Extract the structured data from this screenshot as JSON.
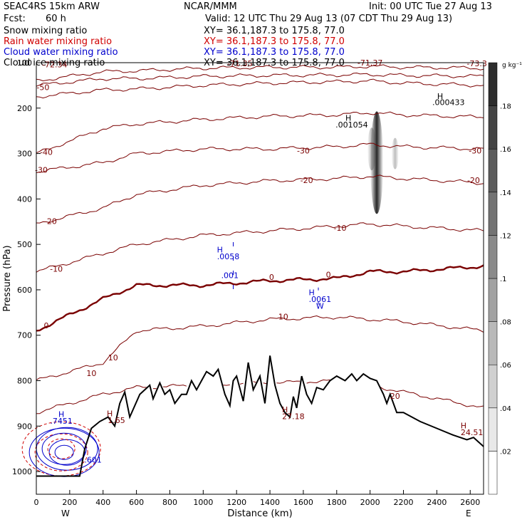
{
  "header": {
    "model": "SEAC4RS 15km ARW",
    "org": "NCAR/MMM",
    "init": "Init: 00 UTC Tue 27 Aug 13",
    "fcst_label": "Fcst:",
    "fcst_value": "60 h",
    "valid": "Valid: 12 UTC Thu 29 Aug 13 (07 CDT Thu 29 Aug 13)"
  },
  "legend": [
    {
      "name": "Snow mixing ratio",
      "xy": "XY=  36.1,187.3 to 175.8, 77.0",
      "color": "#000000"
    },
    {
      "name": "Rain water mixing ratio",
      "xy": "XY=  36.1,187.3 to 175.8, 77.0",
      "color": "#d00000"
    },
    {
      "name": "Cloud water mixing ratio",
      "xy": "XY=  36.1,187.3 to 175.8, 77.0",
      "color": "#0000cc"
    },
    {
      "name": "Cloud ice mixing ratio",
      "xy": "XY=  36.1,187.3 to 175.8, 77.0",
      "color": "#000000"
    }
  ],
  "colorbar": {
    "unit": "g kg⁻¹",
    "ticks": [
      ".02",
      ".04",
      ".06",
      ".08",
      ".1",
      ".12",
      ".14",
      ".16",
      ".18"
    ]
  },
  "chart_data": {
    "type": "cross-section",
    "xlabel": "Distance (km)",
    "ylabel": "Pressure (hPa)",
    "xlim": [
      0,
      2680
    ],
    "ylim": [
      1050,
      100
    ],
    "x_ticks": [
      "0",
      "200",
      "400",
      "600",
      "800",
      "1000",
      "1200",
      "1400",
      "1600",
      "1800",
      "2000",
      "2200",
      "2400",
      "2600"
    ],
    "y_ticks": [
      "100",
      "200",
      "300",
      "400",
      "500",
      "600",
      "700",
      "800",
      "900",
      "1000"
    ],
    "endpoints": {
      "left": "W",
      "right": "E"
    },
    "terrain": {
      "color": "#000000",
      "x": [
        0,
        150,
        260,
        290,
        330,
        380,
        430,
        470,
        500,
        530,
        560,
        620,
        680,
        700,
        740,
        770,
        800,
        830,
        870,
        900,
        930,
        960,
        990,
        1020,
        1060,
        1090,
        1130,
        1160,
        1180,
        1200,
        1240,
        1270,
        1300,
        1340,
        1370,
        1400,
        1430,
        1460,
        1490,
        1520,
        1540,
        1560,
        1590,
        1620,
        1650,
        1680,
        1720,
        1760,
        1800,
        1850,
        1890,
        1920,
        1960,
        2000,
        2040,
        2080,
        2100,
        2120,
        2160,
        2200,
        2300,
        2400,
        2500,
        2580,
        2620,
        2680
      ],
      "p": [
        1010,
        1010,
        1010,
        950,
        905,
        890,
        880,
        900,
        850,
        825,
        880,
        830,
        810,
        840,
        805,
        830,
        820,
        850,
        830,
        830,
        800,
        820,
        800,
        780,
        790,
        775,
        830,
        855,
        800,
        790,
        845,
        760,
        820,
        790,
        850,
        745,
        810,
        850,
        870,
        880,
        835,
        860,
        790,
        830,
        850,
        815,
        820,
        800,
        790,
        800,
        785,
        800,
        785,
        795,
        800,
        830,
        850,
        830,
        870,
        870,
        890,
        905,
        920,
        930,
        925,
        945
      ]
    },
    "temperature_isotherms_C": [
      -70,
      -60,
      -50,
      -40,
      -30,
      -20,
      -10,
      0,
      10,
      20
    ],
    "labels": [
      {
        "text": "-72.34",
        "x": 110,
        "p": 110,
        "color": "#7a0000"
      },
      {
        "text": "-71.35",
        "x": 1220,
        "p": 108,
        "color": "#7a0000"
      },
      {
        "text": "-71.37",
        "x": 2000,
        "p": 106,
        "color": "#7a0000"
      },
      {
        "text": "-73.3",
        "x": 2640,
        "p": 108,
        "color": "#7a0000"
      },
      {
        "text": "-50",
        "x": 40,
        "p": 160,
        "color": "#7a0000"
      },
      {
        "text": "-40",
        "x": 60,
        "p": 303,
        "color": "#7a0000"
      },
      {
        "text": "-30",
        "x": 30,
        "p": 342,
        "color": "#7a0000"
      },
      {
        "text": "-20",
        "x": 85,
        "p": 455,
        "color": "#7a0000"
      },
      {
        "text": "-10",
        "x": 120,
        "p": 560,
        "color": "#7a0000"
      },
      {
        "text": "0",
        "x": 60,
        "p": 685,
        "color": "#7a0000"
      },
      {
        "text": "10",
        "x": 330,
        "p": 790,
        "color": "#7a0000"
      },
      {
        "text": "10",
        "x": 460,
        "p": 755,
        "color": "#7a0000"
      },
      {
        "text": "-30",
        "x": 1600,
        "p": 300,
        "color": "#7a0000"
      },
      {
        "text": "-20",
        "x": 1620,
        "p": 365,
        "color": "#7a0000"
      },
      {
        "text": "-10",
        "x": 1820,
        "p": 470,
        "color": "#7a0000"
      },
      {
        "text": "0",
        "x": 1410,
        "p": 578,
        "color": "#7a0000"
      },
      {
        "text": "0",
        "x": 1750,
        "p": 573,
        "color": "#7a0000"
      },
      {
        "text": "10",
        "x": 1480,
        "p": 665,
        "color": "#7a0000"
      },
      {
        "text": "-30",
        "x": 2630,
        "p": 300,
        "color": "#7a0000"
      },
      {
        "text": "-20",
        "x": 2620,
        "p": 365,
        "color": "#7a0000"
      },
      {
        "text": "20",
        "x": 2150,
        "p": 840,
        "color": "#7a0000"
      },
      {
        "text": "H",
        "x": 2420,
        "p": 180,
        "color": "#000000"
      },
      {
        "text": ".000433",
        "x": 2470,
        "p": 193,
        "color": "#000000"
      },
      {
        "text": "H",
        "x": 1870,
        "p": 228,
        "color": "#000000"
      },
      {
        "text": ".001054",
        "x": 1890,
        "p": 243,
        "color": "#000000"
      },
      {
        "text": "H",
        "x": 1100,
        "p": 518,
        "color": "#0000cc"
      },
      {
        "text": ".0058",
        "x": 1150,
        "p": 533,
        "color": "#0000cc"
      },
      {
        "text": ".001",
        "x": 1160,
        "p": 574,
        "color": "#0000cc"
      },
      {
        "text": "H",
        "x": 1650,
        "p": 612,
        "color": "#0000cc"
      },
      {
        "text": ".0061",
        "x": 1700,
        "p": 627,
        "color": "#0000cc"
      },
      {
        "text": "W",
        "x": 1700,
        "p": 642,
        "color": "#0000cc"
      },
      {
        "text": "H",
        "x": 440,
        "p": 878,
        "color": "#7a0000"
      },
      {
        "text": "1.65",
        "x": 480,
        "p": 893,
        "color": "#7a0000"
      },
      {
        "text": "H",
        "x": 1490,
        "p": 870,
        "color": "#7a0000"
      },
      {
        "text": "27.18",
        "x": 1540,
        "p": 885,
        "color": "#7a0000"
      },
      {
        "text": "H",
        "x": 2560,
        "p": 905,
        "color": "#7a0000"
      },
      {
        "text": "24.51",
        "x": 2610,
        "p": 920,
        "color": "#7a0000"
      },
      {
        "text": "H",
        "x": 150,
        "p": 880,
        "color": "#0000cc"
      },
      {
        "text": ".7451",
        "x": 150,
        "p": 895,
        "color": "#0000cc"
      },
      {
        "text": ".601",
        "x": 340,
        "p": 980,
        "color": "#0000cc"
      }
    ]
  }
}
